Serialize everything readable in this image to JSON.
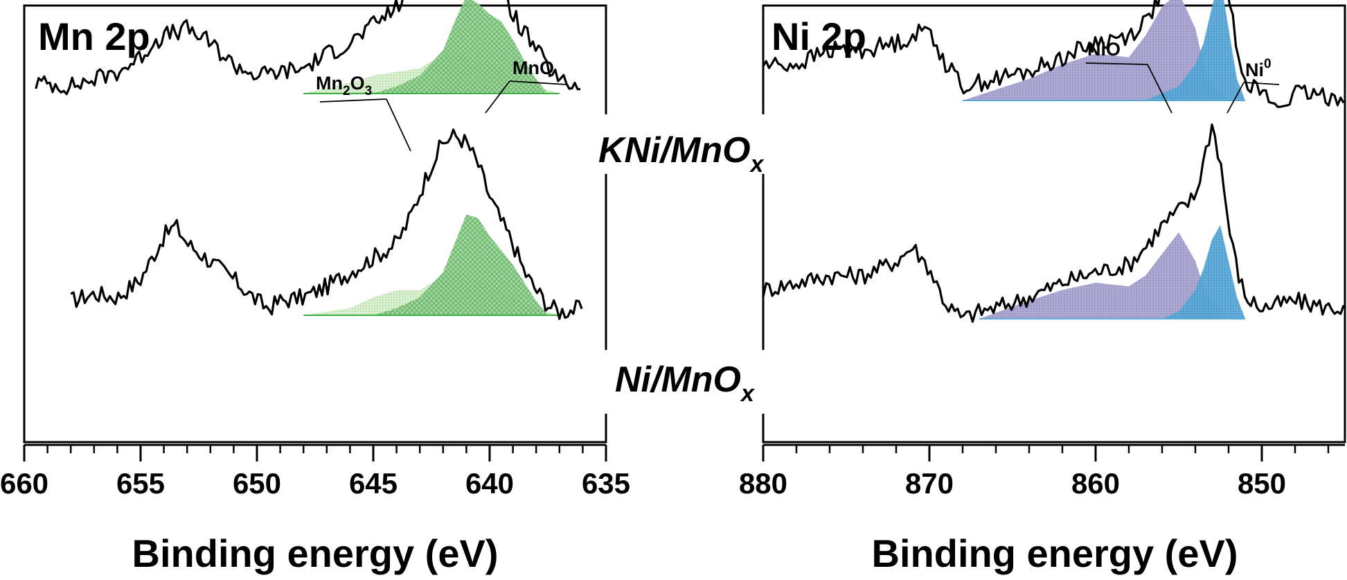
{
  "colors": {
    "axis": "#000000",
    "spectrum": "#000000",
    "mn2o3_fill": "#d8efcc",
    "mno_fill": "#9fd49a",
    "mn_baseline": "#3cb043",
    "nio_fill": "#a8a3cf",
    "ni0_fill": "#5aa9d8",
    "ni_baseline": "#5aa9d8"
  },
  "chart_data": [
    {
      "type": "line",
      "panel": "Mn 2p",
      "title": "Mn 2p",
      "xlabel": "Binding energy (eV)",
      "ylabel": "",
      "xlim": [
        660,
        635
      ],
      "reversed_x": true,
      "xticks": [
        660,
        655,
        650,
        645,
        640,
        635
      ],
      "xtick_labels": [
        "660",
        "655",
        "650",
        "645",
        "640",
        "635"
      ],
      "y_axis_labels": false,
      "annotations": [
        {
          "text": "Mn",
          "sub": "2",
          "text2": "O",
          "sub2": "3",
          "points_to_x": 643.2
        },
        {
          "text": "MnO",
          "points_to_x": 640.3
        }
      ],
      "series": [
        {
          "name": "KNi/MnOx",
          "label_main": "KNi/MnO",
          "label_sub": "x",
          "offset": 0.48,
          "x": [
            658.0,
            657.0,
            656.0,
            655.0,
            654.0,
            653.5,
            653.0,
            652.0,
            651.0,
            650.0,
            649.5,
            649.0,
            648.0,
            647.0,
            646.0,
            645.0,
            644.0,
            643.5,
            643.0,
            642.5,
            642.0,
            641.5,
            641.0,
            640.5,
            640.0,
            639.5,
            639.0,
            638.5,
            638.0,
            637.5,
            637.0,
            636.0
          ],
          "y": [
            0.04,
            0.06,
            0.05,
            0.1,
            0.22,
            0.25,
            0.2,
            0.15,
            0.1,
            0.04,
            0.02,
            0.04,
            0.05,
            0.08,
            0.12,
            0.16,
            0.2,
            0.26,
            0.34,
            0.42,
            0.48,
            0.5,
            0.48,
            0.42,
            0.33,
            0.26,
            0.2,
            0.12,
            0.07,
            0.03,
            0.01,
            0.02
          ],
          "components": [
            {
              "name": "Mn2O3",
              "x": [
                648.0,
                646.0,
                645.0,
                644.0,
                643.0,
                642.5,
                642.0,
                641.5,
                641.0,
                640.0,
                639.0,
                638.0,
                637.0
              ],
              "y": [
                0.0,
                0.02,
                0.05,
                0.07,
                0.07,
                0.09,
                0.11,
                0.12,
                0.11,
                0.08,
                0.05,
                0.02,
                0.0
              ]
            },
            {
              "name": "MnO",
              "x": [
                645.0,
                644.0,
                643.0,
                642.0,
                641.5,
                641.0,
                640.5,
                640.0,
                639.5,
                639.0,
                638.5,
                638.0,
                637.5
              ],
              "y": [
                0.0,
                0.02,
                0.05,
                0.12,
                0.2,
                0.28,
                0.27,
                0.22,
                0.18,
                0.14,
                0.09,
                0.04,
                0.0
              ]
            }
          ]
        },
        {
          "name": "Ni/MnOx",
          "label_main": "Ni/MnO",
          "label_sub": "x",
          "offset": 0.0,
          "x": [
            659.5,
            658.0,
            657.0,
            656.0,
            655.0,
            654.5,
            654.0,
            653.0,
            652.0,
            651.0,
            650.0,
            649.0,
            648.0,
            647.0,
            646.0,
            645.0,
            644.0,
            643.5,
            643.0,
            642.5,
            642.0,
            641.5,
            641.0,
            640.5,
            640.0,
            639.5,
            639.0,
            638.0,
            637.0,
            636.0
          ],
          "y": [
            0.03,
            0.02,
            0.04,
            0.06,
            0.1,
            0.14,
            0.16,
            0.18,
            0.14,
            0.08,
            0.05,
            0.06,
            0.07,
            0.11,
            0.14,
            0.19,
            0.24,
            0.28,
            0.34,
            0.4,
            0.46,
            0.52,
            0.46,
            0.42,
            0.37,
            0.3,
            0.22,
            0.12,
            0.03,
            0.02
          ],
          "components": [
            {
              "name": "Mn2O3",
              "x": [
                648.0,
                646.0,
                645.0,
                644.0,
                643.0,
                642.5,
                642.0,
                641.5,
                641.0,
                640.0,
                639.0,
                638.0,
                637.0
              ],
              "y": [
                0.0,
                0.03,
                0.05,
                0.06,
                0.07,
                0.09,
                0.1,
                0.11,
                0.1,
                0.08,
                0.05,
                0.02,
                0.0
              ]
            },
            {
              "name": "MnO",
              "x": [
                645.0,
                644.0,
                643.0,
                642.0,
                641.5,
                641.0,
                640.5,
                640.0,
                639.5,
                639.0,
                638.5,
                638.0,
                637.5
              ],
              "y": [
                0.0,
                0.02,
                0.05,
                0.12,
                0.2,
                0.27,
                0.25,
                0.22,
                0.2,
                0.15,
                0.09,
                0.04,
                0.0
              ]
            }
          ]
        }
      ]
    },
    {
      "type": "line",
      "panel": "Ni 2p",
      "title": "Ni 2p",
      "xlabel": "Binding energy (eV)",
      "ylabel": "",
      "xlim": [
        880,
        845
      ],
      "reversed_x": true,
      "xticks": [
        880,
        870,
        860,
        850
      ],
      "xtick_labels": [
        "880",
        "870",
        "860",
        "850"
      ],
      "y_axis_labels": false,
      "annotations": [
        {
          "text": "NiO",
          "points_to_x": 855.5
        },
        {
          "text": "Ni",
          "sup": "0",
          "points_to_x": 852.8
        }
      ],
      "series": [
        {
          "name": "KNi/MnOx",
          "offset": 0.48,
          "x": [
            880.0,
            878.0,
            876.0,
            874.0,
            872.0,
            871.0,
            870.0,
            869.0,
            868.0,
            867.0,
            866.0,
            864.0,
            862.0,
            860.0,
            858.0,
            857.0,
            856.0,
            855.0,
            854.0,
            853.5,
            853.0,
            852.5,
            852.0,
            851.5,
            851.0,
            850.0,
            848.0,
            846.0,
            845.0
          ],
          "y": [
            0.08,
            0.1,
            0.12,
            0.12,
            0.16,
            0.2,
            0.14,
            0.04,
            0.0,
            0.02,
            0.03,
            0.06,
            0.1,
            0.13,
            0.15,
            0.2,
            0.26,
            0.3,
            0.34,
            0.44,
            0.54,
            0.44,
            0.26,
            0.14,
            0.06,
            0.03,
            0.05,
            0.03,
            0.03
          ],
          "components": [
            {
              "name": "NiO",
              "x": [
                867.0,
                864.0,
                862.0,
                860.0,
                858.0,
                857.0,
                856.0,
                855.0,
                854.0,
                853.5,
                853.0,
                852.0
              ],
              "y": [
                0.0,
                0.05,
                0.08,
                0.1,
                0.09,
                0.12,
                0.18,
                0.24,
                0.16,
                0.09,
                0.05,
                0.0
              ]
            },
            {
              "name": "Ni0",
              "x": [
                856.0,
                855.0,
                854.0,
                853.5,
                853.0,
                852.5,
                852.0,
                851.5,
                851.0
              ],
              "y": [
                0.0,
                0.02,
                0.08,
                0.14,
                0.22,
                0.26,
                0.16,
                0.06,
                0.0
              ]
            }
          ]
        },
        {
          "name": "Ni/MnOx",
          "offset": 0.0,
          "x": [
            880.0,
            878.0,
            876.0,
            874.0,
            872.0,
            871.0,
            870.0,
            869.0,
            868.0,
            866.0,
            864.0,
            862.0,
            860.0,
            858.0,
            857.0,
            856.0,
            855.0,
            854.0,
            853.5,
            853.0,
            852.5,
            852.0,
            851.5,
            851.0,
            850.0,
            849.0,
            848.0,
            846.0,
            845.0
          ],
          "y": [
            0.1,
            0.1,
            0.14,
            0.14,
            0.16,
            0.18,
            0.2,
            0.1,
            0.04,
            0.06,
            0.08,
            0.12,
            0.16,
            0.18,
            0.22,
            0.3,
            0.36,
            0.4,
            0.52,
            0.66,
            0.5,
            0.28,
            0.16,
            0.06,
            0.02,
            -0.02,
            0.02,
            0.01,
            0.01
          ],
          "components": [
            {
              "name": "NiO",
              "x": [
                868.0,
                864.0,
                862.0,
                860.0,
                858.0,
                857.0,
                856.0,
                855.0,
                854.0,
                853.5,
                853.0,
                852.0
              ],
              "y": [
                0.0,
                0.06,
                0.1,
                0.13,
                0.12,
                0.18,
                0.26,
                0.3,
                0.2,
                0.1,
                0.05,
                0.0
              ]
            },
            {
              "name": "Ni0",
              "x": [
                857.0,
                856.0,
                855.0,
                854.0,
                853.5,
                853.0,
                852.5,
                852.0,
                851.5,
                851.0
              ],
              "y": [
                0.0,
                0.02,
                0.04,
                0.1,
                0.16,
                0.26,
                0.34,
                0.2,
                0.06,
                0.0
              ]
            }
          ]
        }
      ]
    }
  ]
}
